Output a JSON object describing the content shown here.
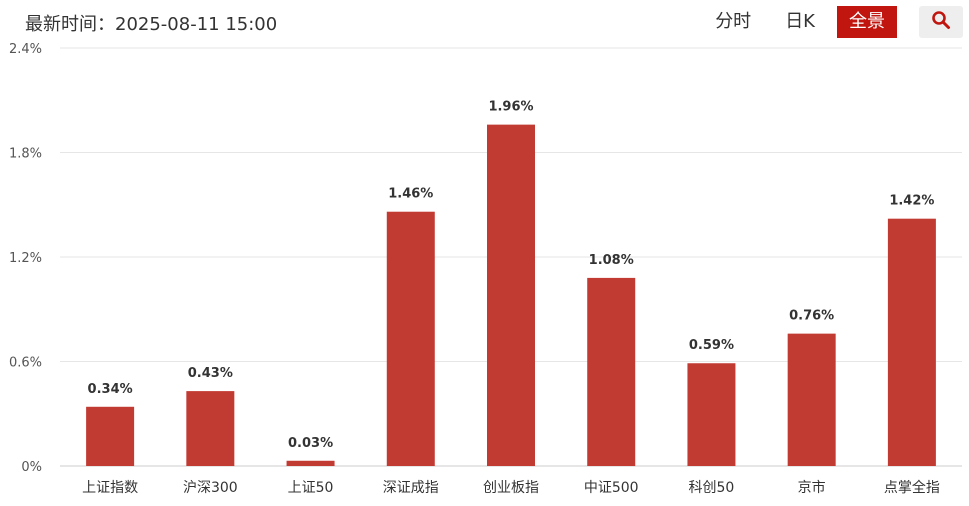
{
  "header": {
    "time_label": "最新时间：2025-08-11 15:00",
    "tabs": [
      {
        "label": "分时",
        "active": false
      },
      {
        "label": "日K",
        "active": false
      },
      {
        "label": "全景",
        "active": true
      }
    ],
    "search_icon": "search-icon"
  },
  "colors": {
    "bar": "#c23b32",
    "active_tab": "#c0160f",
    "grid": "#e6e6e6"
  },
  "chart_data": {
    "type": "bar",
    "title": "",
    "xlabel": "",
    "ylabel": "",
    "categories": [
      "上证指数",
      "沪深300",
      "上证50",
      "深证成指",
      "创业板指",
      "中证500",
      "科创50",
      "京市",
      "点掌全指"
    ],
    "values": [
      0.34,
      0.43,
      0.03,
      1.46,
      1.96,
      1.08,
      0.59,
      0.76,
      1.42
    ],
    "value_labels": [
      "0.34%",
      "0.43%",
      "0.03%",
      "1.46%",
      "1.96%",
      "1.08%",
      "0.59%",
      "0.76%",
      "1.42%"
    ],
    "ylim": [
      0,
      2.4
    ],
    "yticks": [
      0,
      0.6,
      1.2,
      1.8,
      2.4
    ],
    "ytick_labels": [
      "0%",
      "0.6%",
      "1.2%",
      "1.8%",
      "2.4%"
    ],
    "grid": true
  }
}
